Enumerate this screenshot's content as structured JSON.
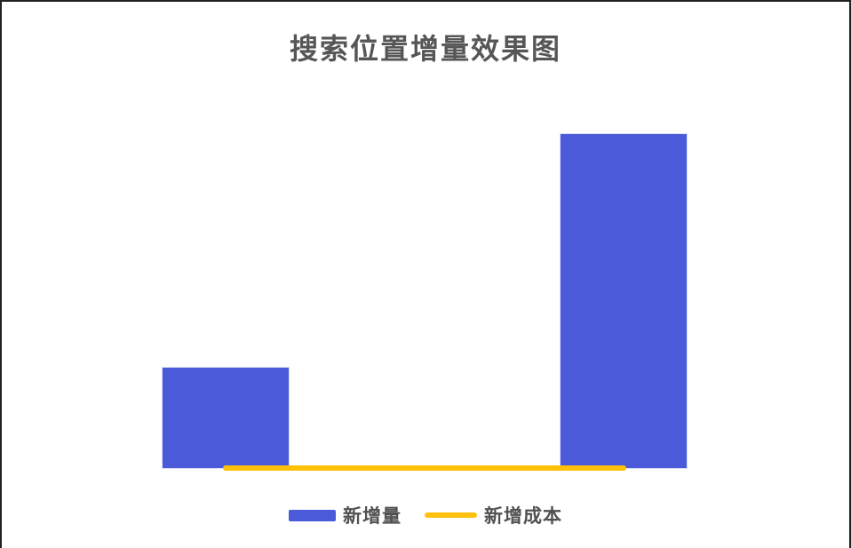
{
  "canvas": {
    "background": "#ffffff",
    "frame_border_color": "#212121",
    "title_text_color": "#565656",
    "legend_text_color": "#515151"
  },
  "chart_data": {
    "type": "bar",
    "title": "搜索位置增量效果图",
    "categories": [
      "",
      ""
    ],
    "series": [
      {
        "name": "新增量",
        "kind": "bar",
        "color": "#4b5ad8",
        "values": [
          30,
          100
        ]
      },
      {
        "name": "新增成本",
        "kind": "line",
        "color": "#ffc107",
        "values": [
          0,
          0
        ]
      }
    ],
    "xlabel": "",
    "ylabel": "",
    "ylim": [
      0,
      115
    ],
    "grid": false,
    "axes_visible": false,
    "tick_labels_visible": false,
    "legend_position": "bottom",
    "value_note": "no numeric axis or tick labels shown; bar values are relative with the tall bar = 100, cost line sits at ~0 along the baseline"
  }
}
